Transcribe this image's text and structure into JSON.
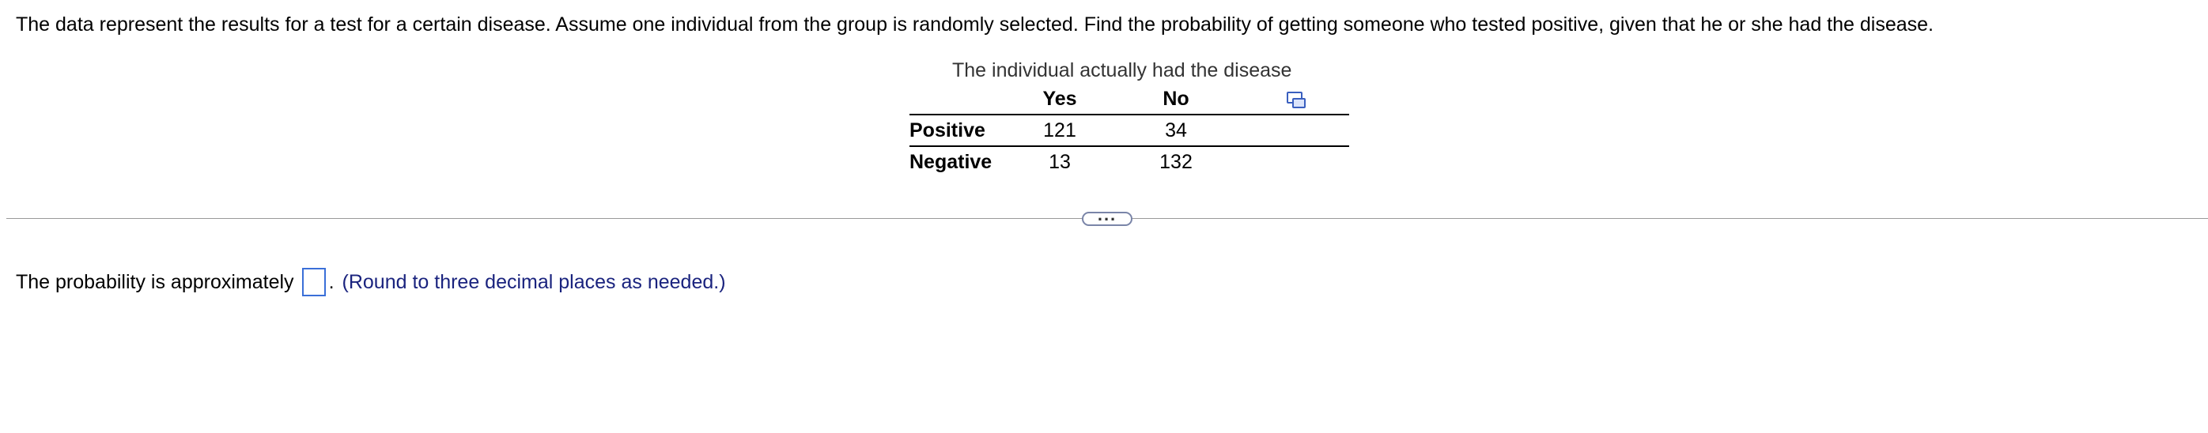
{
  "question": {
    "text": "The data represent the results for a test for a certain disease. Assume one individual from the group is randomly selected. Find the probability of getting someone who tested positive, given that he or she had the disease."
  },
  "table": {
    "caption": "The individual actually had the disease",
    "columns": [
      "Yes",
      "No"
    ],
    "rows": [
      {
        "label": "Positive",
        "values": [
          "121",
          "34"
        ]
      },
      {
        "label": "Negative",
        "values": [
          "13",
          "132"
        ]
      }
    ],
    "copy_icon": "copy-table-icon"
  },
  "expand_button": {
    "label": "..."
  },
  "answer": {
    "prefix": "The probability is approximately",
    "value": "",
    "period": ".",
    "hint": "(Round to three decimal places as needed.)"
  }
}
